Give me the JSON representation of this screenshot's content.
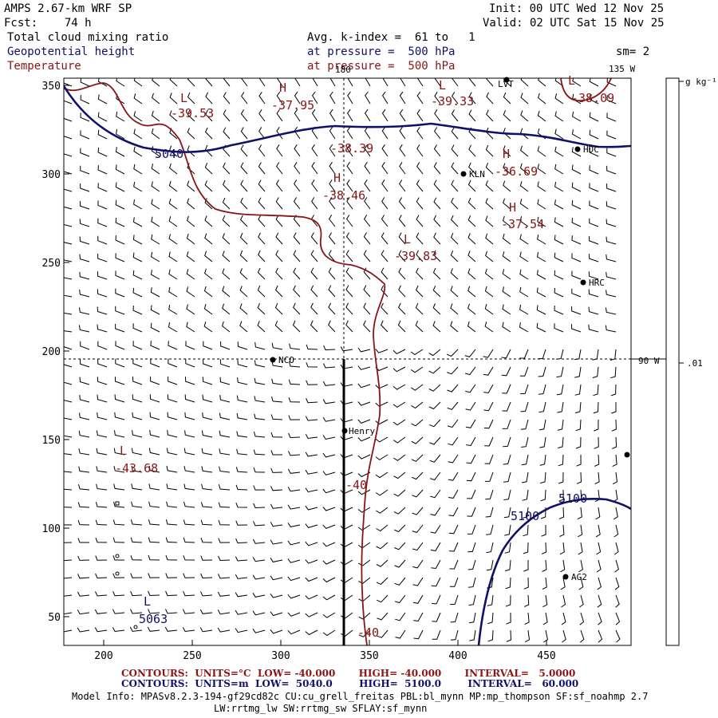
{
  "header": {
    "model": "AMPS 2.67-km WRF SP",
    "forecast": "Fcst:    74 h",
    "init": "Init: 00 UTC Wed 12 Nov 25",
    "valid": "Valid: 02 UTC Sat 15 Nov 25",
    "field_cloud": "Total cloud mixing ratio",
    "field_height": "Geopotential height",
    "field_temp": "Temperature",
    "avg_k": "Avg. k-index =  61 to   1",
    "pressure1": "at pressure =  500 hPa",
    "pressure2": "at pressure =  500 hPa",
    "smoothing": "sm= 2"
  },
  "map": {
    "x_ticks": [
      "200",
      "250",
      "300",
      "350",
      "400",
      "450"
    ],
    "y_ticks": [
      "50",
      "100",
      "150",
      "200",
      "250",
      "300",
      "350"
    ],
    "meridian_top": "180",
    "meridian_135": "135 W",
    "meridian_90": "90 W",
    "stations": [
      {
        "name": "LVT"
      },
      {
        "name": "KLN"
      },
      {
        "name": "HDC"
      },
      {
        "name": "HRC"
      },
      {
        "name": "NCO"
      },
      {
        "name": "Henry"
      },
      {
        "name": "AG2"
      }
    ],
    "pressure_centers": [
      {
        "kind": "L",
        "value": "-39.53"
      },
      {
        "kind": "H",
        "value": "-37.95"
      },
      {
        "kind": "L",
        "value": "-39.33"
      },
      {
        "kind": "L",
        "value": "-38.09"
      },
      {
        "kind": "",
        "value": "-38.39"
      },
      {
        "kind": "H",
        "value": "-36.69"
      },
      {
        "kind": "H",
        "value": "-38.46"
      },
      {
        "kind": "H",
        "value": "-37.54"
      },
      {
        "kind": "L",
        "value": "-39.83"
      },
      {
        "kind": "L",
        "value": "-43.68"
      },
      {
        "kind": "L",
        "value": "5063"
      }
    ],
    "contour_labels": {
      "height_5040": "5040",
      "height_5100_a": "5100",
      "height_5100_b": "5100",
      "temp_40_a": "-40",
      "temp_40_b": "-40"
    }
  },
  "colorbar": {
    "units": "g kg⁻¹",
    "value": ".01"
  },
  "footer": {
    "temp_contours": "CONTOURS:  UNITS=°C  LOW= -40.000       HIGH= -40.000       INTERVAL=   5.0000",
    "height_contours": "CONTOURS:  UNITS=m  LOW=  5040.0        HIGH=  5100.0        INTERVAL=   60.000",
    "model_info_1": "Model Info: MPASv8.2.3-194-gf29cd82c CU:cu_grell_freitas PBL:bl_mynn MP:mp_thompson SF:sf_noahmp 2.7",
    "model_info_2": "LW:rrtmg_lw SW:rrtmg_sw SFLAY:sf_mynn"
  },
  "colors": {
    "height": "#10106a",
    "temperature": "#8b1414",
    "barbs": "#000000"
  }
}
